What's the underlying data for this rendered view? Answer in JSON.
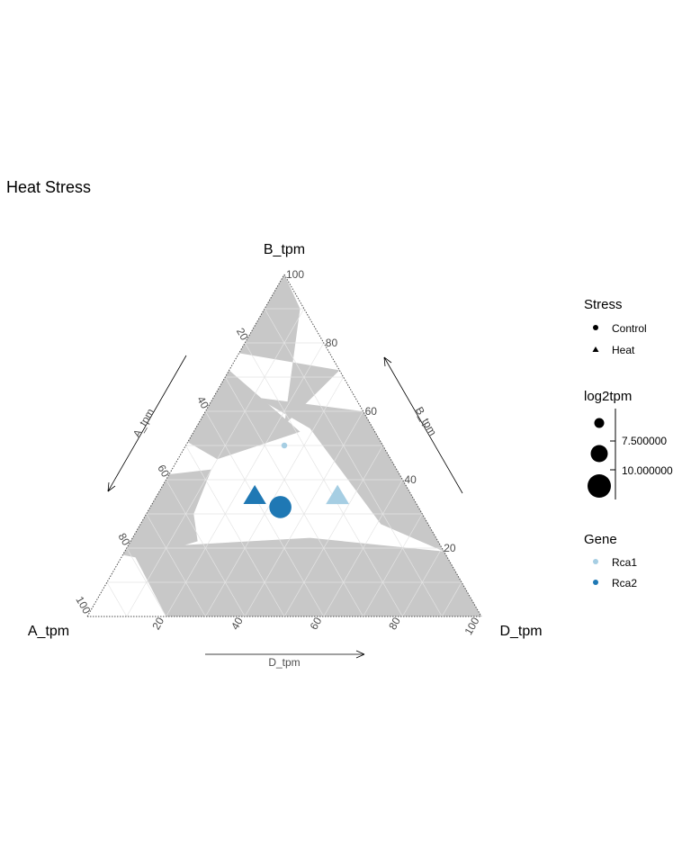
{
  "chart_data": {
    "type": "ternary",
    "title": "Heat Stress",
    "vertices": {
      "left": "A_tpm",
      "top": "B_tpm",
      "right": "D_tpm"
    },
    "axes": [
      {
        "name": "A_tpm",
        "ticks": [
          "20",
          "40",
          "60",
          "80",
          "100"
        ],
        "arrow_label": "A_tpm"
      },
      {
        "name": "B_tpm",
        "ticks": [
          "20",
          "40",
          "60",
          "80",
          "100"
        ],
        "arrow_label": "B_tpm"
      },
      {
        "name": "D_tpm",
        "ticks": [
          "20",
          "40",
          "60",
          "80",
          "100"
        ],
        "arrow_label": "D_tpm"
      }
    ],
    "background_regions": [
      {
        "name": "left-top region",
        "points": [
          [
            28,
            72,
            0
          ],
          [
            49,
            51,
            0
          ],
          [
            44,
            46,
            10
          ],
          [
            19,
            54,
            27
          ]
        ]
      },
      {
        "name": "left-bottom region",
        "points": [
          [
            82,
            18,
            0
          ],
          [
            59,
            42,
            0
          ],
          [
            47,
            43,
            10
          ],
          [
            58,
            30,
            12
          ],
          [
            61,
            22,
            17
          ],
          [
            78,
            17,
            5
          ]
        ]
      },
      {
        "name": "right-top region",
        "points": [
          [
            0,
            100,
            0
          ],
          [
            23,
            77,
            0
          ],
          [
            0,
            72,
            28
          ],
          [
            22,
            56,
            22
          ],
          [
            1,
            90,
            9
          ],
          [
            0,
            100,
            0
          ]
        ]
      },
      {
        "name": "right region",
        "points": [
          [
            0,
            60,
            40
          ],
          [
            25,
            64,
            11
          ],
          [
            16,
            55,
            29
          ],
          [
            12,
            27,
            61
          ],
          [
            0,
            19,
            81
          ]
        ]
      },
      {
        "name": "bottom region",
        "points": [
          [
            79,
            20,
            1
          ],
          [
            32,
            23,
            45
          ],
          [
            0,
            19,
            81
          ],
          [
            0,
            0,
            100
          ],
          [
            80,
            0,
            20
          ]
        ]
      }
    ],
    "points": [
      {
        "gene": "Rca1",
        "stress": "Control",
        "A_tpm": 25,
        "B_tpm": 50,
        "D_tpm": 25,
        "log2tpm": 6.6
      },
      {
        "gene": "Rca2",
        "stress": "Heat",
        "A_tpm": 40,
        "B_tpm": 35,
        "D_tpm": 25,
        "log2tpm": 10.2
      },
      {
        "gene": "Rca2",
        "stress": "Control",
        "A_tpm": 35,
        "B_tpm": 32,
        "D_tpm": 33,
        "log2tpm": 10.3
      },
      {
        "gene": "Rca1",
        "stress": "Heat",
        "A_tpm": 19,
        "B_tpm": 35,
        "D_tpm": 46,
        "log2tpm": 10.3
      }
    ],
    "grid": true,
    "legend_placement": "right"
  },
  "legend": {
    "stress": {
      "title": "Stress",
      "items": [
        "Control",
        "Heat"
      ]
    },
    "size": {
      "title": "log2tpm",
      "labels": [
        "7.500000",
        "10.000000"
      ],
      "values": [
        7.5,
        10.0
      ]
    },
    "gene": {
      "title": "Gene",
      "items": [
        "Rca1",
        "Rca2"
      ]
    }
  },
  "colors": {
    "Rca1": "#a6cee3",
    "Rca2": "#1f78b4",
    "region": "#c8c8c8",
    "grid": "#e4e4e4",
    "axis": "#4d4d4d"
  }
}
